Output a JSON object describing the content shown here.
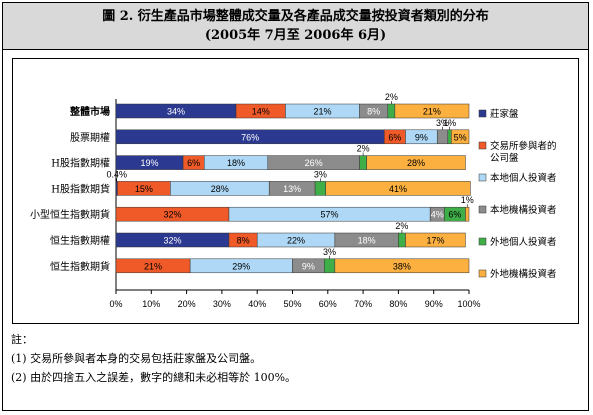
{
  "title": {
    "line1": "圖 2. 衍生產品市場整體成交量及各產品成交量按投資者類別的分布",
    "line2": "(2005年 7月至 2006年 6月)"
  },
  "notes": {
    "heading": "註：",
    "items": [
      "(1) 交易所參與者本身的交易包括莊家盤及公司盤。",
      "(2) 由於四捨五入之誤差，數字的總和未必相等於 100%。"
    ]
  },
  "chart_data": {
    "type": "bar",
    "orientation": "horizontal",
    "stacked": true,
    "percent": true,
    "categories": [
      "整體市場",
      "股票期權",
      "H股指數期權",
      "H股指數期貨",
      "小型恒生指數期貨",
      "恒生指數期權",
      "恒生指數期貨"
    ],
    "bold_categories": [
      "整體市場"
    ],
    "series": [
      {
        "name": "莊家盤",
        "color": "#2b3990",
        "values": [
          34,
          76,
          19,
          0.4,
          0,
          32,
          0
        ],
        "labels": [
          "34%",
          "76%",
          "19%",
          "0.4%",
          "",
          "32%",
          ""
        ]
      },
      {
        "name": "交易所參與者的公司盤",
        "color": "#f05a28",
        "values": [
          14,
          6,
          6,
          15,
          32,
          8,
          21
        ],
        "labels": [
          "14%",
          "6%",
          "6%",
          "15%",
          "32%",
          "8%",
          "21%"
        ]
      },
      {
        "name": "本地個人投資者",
        "color": "#aed8f5",
        "values": [
          21,
          9,
          18,
          28,
          57,
          22,
          29
        ],
        "labels": [
          "21%",
          "9%",
          "18%",
          "28%",
          "57%",
          "22%",
          "29%"
        ]
      },
      {
        "name": "本地機構投資者",
        "color": "#8c8c8c",
        "values": [
          8,
          3,
          26,
          13,
          4,
          18,
          9
        ],
        "labels": [
          "8%",
          "3%",
          "26%",
          "13%",
          "4%",
          "18%",
          "9%"
        ]
      },
      {
        "name": "外地個人投資者",
        "color": "#3fae49",
        "values": [
          2,
          1,
          2,
          3,
          6,
          2,
          3
        ],
        "labels": [
          "2%",
          "1%",
          "2%",
          "3%",
          "6%",
          "2%",
          "3%"
        ]
      },
      {
        "name": "外地機構投資者",
        "color": "#fbb040",
        "values": [
          21,
          5,
          28,
          41,
          1,
          17,
          38
        ],
        "labels": [
          "21%",
          "5%",
          "28%",
          "41%",
          "1%",
          "17%",
          "38%"
        ]
      }
    ],
    "xlim": [
      0,
      100
    ],
    "xticks": [
      "0%",
      "10%",
      "20%",
      "30%",
      "40%",
      "50%",
      "60%",
      "70%",
      "80%",
      "90%",
      "100%"
    ],
    "grid": false,
    "legend_position": "right"
  }
}
